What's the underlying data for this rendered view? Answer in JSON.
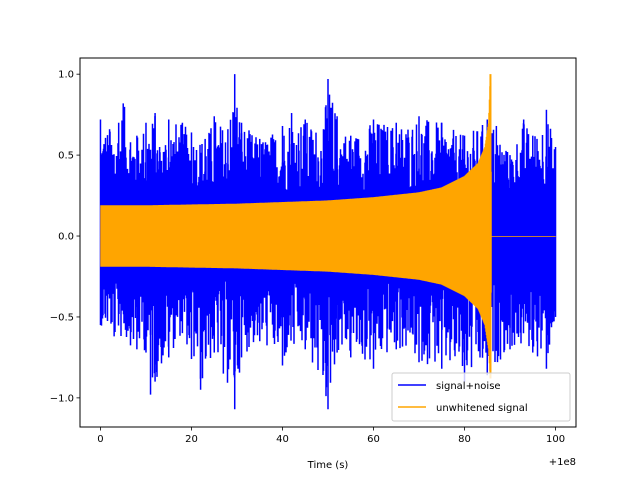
{
  "chart_data": {
    "type": "line",
    "title": "",
    "xlabel": "Time (s)",
    "ylabel": "",
    "x_offset_text": "+1e8",
    "xlim": [
      -4.5,
      104.5
    ],
    "ylim": [
      -1.18,
      1.1
    ],
    "x_ticks": [
      0,
      20,
      40,
      60,
      80,
      100
    ],
    "x_tick_labels": [
      "0",
      "20",
      "40",
      "60",
      "80",
      "100"
    ],
    "y_ticks": [
      -1.0,
      -0.5,
      0.0,
      0.5,
      1.0
    ],
    "y_tick_labels": [
      "−1.0",
      "−0.5",
      "0.0",
      "0.5",
      "1.0"
    ],
    "grid": false,
    "legend_position": "lower-right",
    "series": [
      {
        "name": "signal+noise",
        "color": "#0000ff",
        "x_range": [
          0,
          100
        ],
        "envelope_upper": [
          [
            0,
            0.72
          ],
          [
            2,
            0.66
          ],
          [
            4,
            0.7
          ],
          [
            5,
            0.82
          ],
          [
            8,
            0.62
          ],
          [
            10,
            0.7
          ],
          [
            12,
            0.76
          ],
          [
            13,
            0.55
          ],
          [
            15,
            0.72
          ],
          [
            18,
            0.7
          ],
          [
            20,
            0.64
          ],
          [
            23,
            0.6
          ],
          [
            25,
            0.74
          ],
          [
            28,
            0.66
          ],
          [
            29.5,
            1.0
          ],
          [
            31,
            0.7
          ],
          [
            35,
            0.6
          ],
          [
            40,
            0.68
          ],
          [
            42,
            0.76
          ],
          [
            45,
            0.72
          ],
          [
            49,
            0.66
          ],
          [
            50,
            0.97
          ],
          [
            52,
            0.74
          ],
          [
            55,
            0.62
          ],
          [
            60,
            0.72
          ],
          [
            65,
            0.7
          ],
          [
            70,
            0.74
          ],
          [
            75,
            0.7
          ],
          [
            80,
            0.62
          ],
          [
            85,
            0.72
          ],
          [
            87,
            0.68
          ],
          [
            90,
            0.5
          ],
          [
            93,
            0.72
          ],
          [
            95,
            0.62
          ],
          [
            98,
            0.78
          ],
          [
            100,
            0.55
          ]
        ],
        "envelope_lower": [
          [
            0,
            -0.55
          ],
          [
            3,
            -0.62
          ],
          [
            8,
            -0.7
          ],
          [
            10,
            -0.72
          ],
          [
            11,
            -0.98
          ],
          [
            12,
            -0.9
          ],
          [
            15,
            -0.75
          ],
          [
            18,
            -0.6
          ],
          [
            20,
            -0.76
          ],
          [
            22,
            -0.95
          ],
          [
            25,
            -0.72
          ],
          [
            27,
            -0.85
          ],
          [
            29.5,
            -1.07
          ],
          [
            31,
            -0.75
          ],
          [
            35,
            -0.65
          ],
          [
            40,
            -0.8
          ],
          [
            45,
            -0.7
          ],
          [
            50,
            -1.07
          ],
          [
            52,
            -0.72
          ],
          [
            55,
            -0.75
          ],
          [
            60,
            -0.82
          ],
          [
            65,
            -0.7
          ],
          [
            70,
            -0.78
          ],
          [
            75,
            -0.82
          ],
          [
            80,
            -0.9
          ],
          [
            85,
            -0.86
          ],
          [
            90,
            -0.7
          ],
          [
            95,
            -0.72
          ],
          [
            98,
            -0.82
          ],
          [
            100,
            -0.5
          ]
        ]
      },
      {
        "name": "unwhitened signal",
        "color": "#ffa500",
        "x_range": [
          0,
          100
        ],
        "envelope_upper": [
          [
            0,
            0.19
          ],
          [
            10,
            0.19
          ],
          [
            20,
            0.195
          ],
          [
            30,
            0.2
          ],
          [
            40,
            0.21
          ],
          [
            50,
            0.22
          ],
          [
            60,
            0.24
          ],
          [
            70,
            0.27
          ],
          [
            75,
            0.3
          ],
          [
            80,
            0.37
          ],
          [
            83,
            0.45
          ],
          [
            84.5,
            0.55
          ],
          [
            85.3,
            0.7
          ],
          [
            85.7,
            1.0
          ],
          [
            85.9,
            0.0
          ],
          [
            100,
            0.0
          ]
        ],
        "envelope_lower": [
          [
            0,
            -0.19
          ],
          [
            10,
            -0.19
          ],
          [
            20,
            -0.195
          ],
          [
            30,
            -0.2
          ],
          [
            40,
            -0.21
          ],
          [
            50,
            -0.22
          ],
          [
            60,
            -0.24
          ],
          [
            70,
            -0.27
          ],
          [
            75,
            -0.3
          ],
          [
            80,
            -0.37
          ],
          [
            83,
            -0.45
          ],
          [
            84.5,
            -0.55
          ],
          [
            85.3,
            -0.7
          ],
          [
            85.7,
            -0.88
          ],
          [
            85.9,
            0.0
          ],
          [
            100,
            0.0
          ]
        ]
      }
    ]
  }
}
